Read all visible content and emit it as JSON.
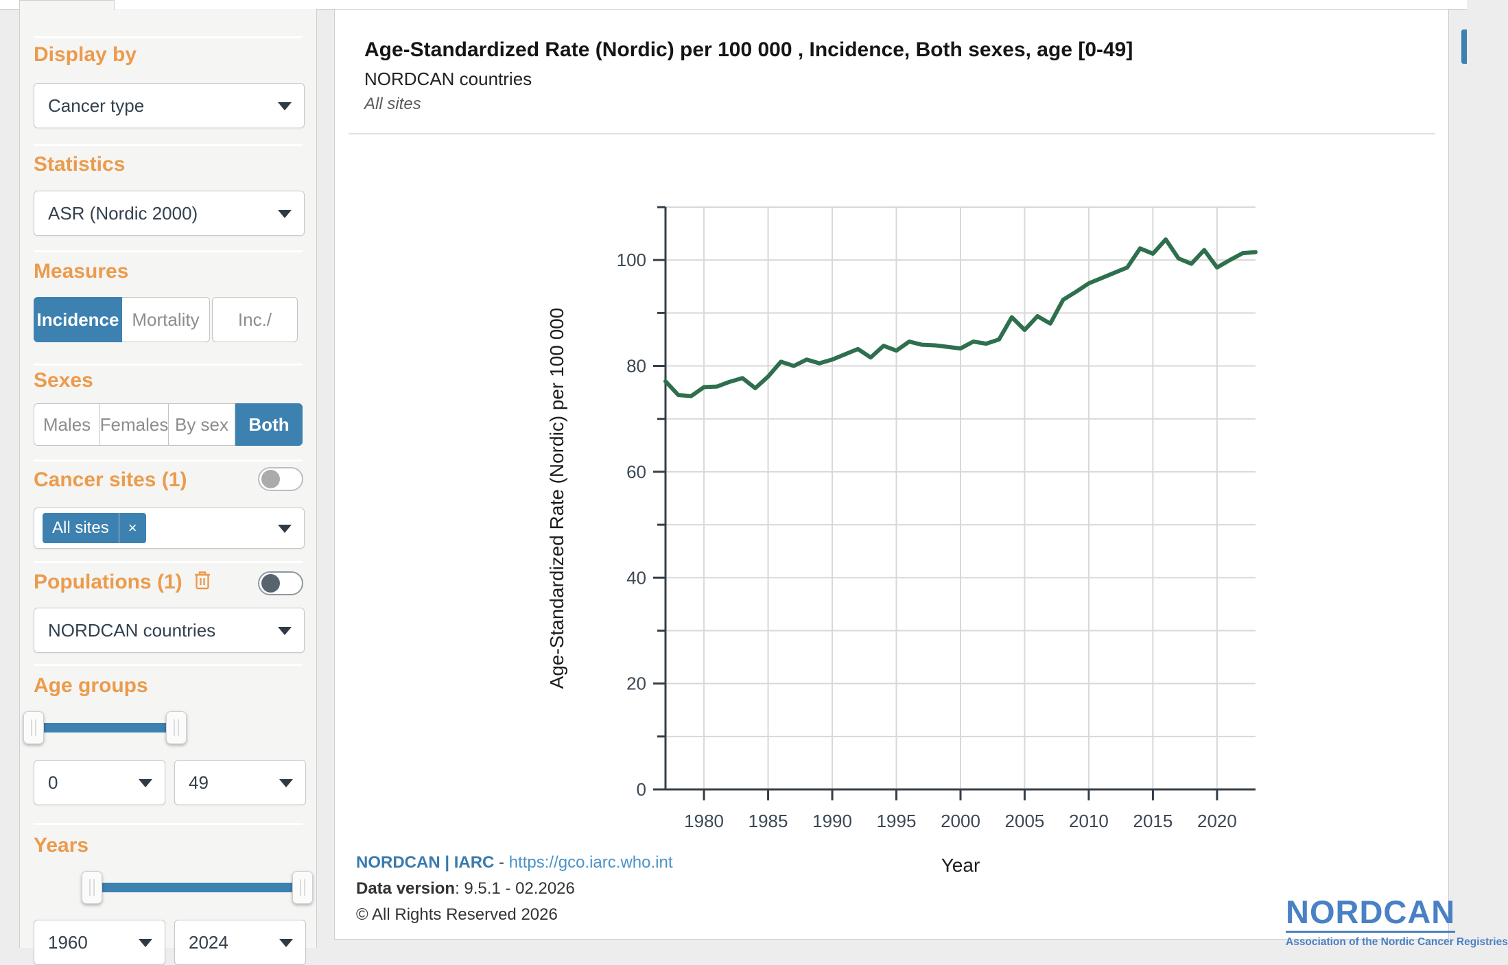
{
  "colors": {
    "accent_blue": "#3d81b0",
    "heading_orange": "#EC9B4C",
    "line_green": "#2e6f4d",
    "link_blue": "#4a93c8",
    "logo_blue": "#4a80c4"
  },
  "sidebar": {
    "display_by": {
      "heading": "Display by",
      "value": "Cancer type"
    },
    "statistics": {
      "heading": "Statistics",
      "value": "ASR (Nordic 2000)"
    },
    "measures": {
      "heading": "Measures",
      "options": [
        "Incidence",
        "Mortality",
        "Inc./"
      ],
      "selected": "Incidence"
    },
    "sexes": {
      "heading": "Sexes",
      "options": [
        "Males",
        "Females",
        "By sex",
        "Both"
      ],
      "selected": "Both"
    },
    "cancer_sites": {
      "heading": "Cancer sites (1)",
      "chip_label": "All sites",
      "chip_remove": "×",
      "toggle_on": false
    },
    "populations": {
      "heading": "Populations (1)",
      "value": "NORDCAN countries",
      "toggle_on": false
    },
    "age_groups": {
      "heading": "Age groups",
      "from": "0",
      "to": "49"
    },
    "years": {
      "heading": "Years",
      "from": "1960",
      "to": "2024"
    }
  },
  "main": {
    "title": "Age-Standardized Rate (Nordic) per 100 000 , Incidence, Both sexes, age [0-49]",
    "subtitle": "NORDCAN countries",
    "filter_note": "All sites",
    "footer": {
      "brand": "NORDCAN | IARC",
      "dash": " - ",
      "url": "https://gco.iarc.who.int",
      "data_version_label": "Data version",
      "data_version_value": ": 9.5.1 - 02.2026",
      "copyright": "© All Rights Reserved 2026"
    },
    "logo": {
      "name": "NORDCAN",
      "tagline": "Association of the Nordic Cancer Registries"
    }
  },
  "chart_data": {
    "type": "line",
    "title": "Age-Standardized Rate (Nordic) per 100 000 , Incidence, Both sexes, age [0-49]",
    "series_name": "NORDCAN countries",
    "xlabel": "Year",
    "ylabel": "Age-Standardized Rate (Nordic) per 100 000",
    "xlim": [
      1977,
      2023
    ],
    "ylim": [
      0,
      110
    ],
    "xticks": [
      1980,
      1985,
      1990,
      1995,
      2000,
      2005,
      2010,
      2015,
      2020
    ],
    "yticks_labeled": [
      0,
      20,
      40,
      60,
      80,
      100
    ],
    "ygrid_step": 10,
    "grid": true,
    "legend_position": "none",
    "line_color": "#2e6f4d",
    "x": [
      1977,
      1978,
      1979,
      1980,
      1981,
      1982,
      1983,
      1984,
      1985,
      1986,
      1987,
      1988,
      1989,
      1990,
      1991,
      1992,
      1993,
      1994,
      1995,
      1996,
      1997,
      1998,
      1999,
      2000,
      2001,
      2002,
      2003,
      2004,
      2005,
      2006,
      2007,
      2008,
      2009,
      2010,
      2011,
      2012,
      2013,
      2014,
      2015,
      2016,
      2017,
      2018,
      2019,
      2020,
      2021,
      2022,
      2023
    ],
    "values": [
      77.1,
      74.5,
      74.3,
      76.0,
      76.1,
      77.0,
      77.7,
      75.8,
      78.0,
      80.8,
      80.0,
      81.2,
      80.5,
      81.2,
      82.2,
      83.2,
      81.6,
      83.8,
      82.9,
      84.6,
      84.0,
      83.9,
      83.6,
      83.3,
      84.6,
      84.2,
      85.0,
      89.2,
      86.8,
      89.4,
      88.0,
      92.5,
      94.0,
      95.6,
      96.6,
      97.6,
      98.6,
      102.2,
      101.2,
      103.9,
      100.3,
      99.3,
      101.9,
      98.6,
      100.0,
      101.3,
      101.5
    ]
  }
}
